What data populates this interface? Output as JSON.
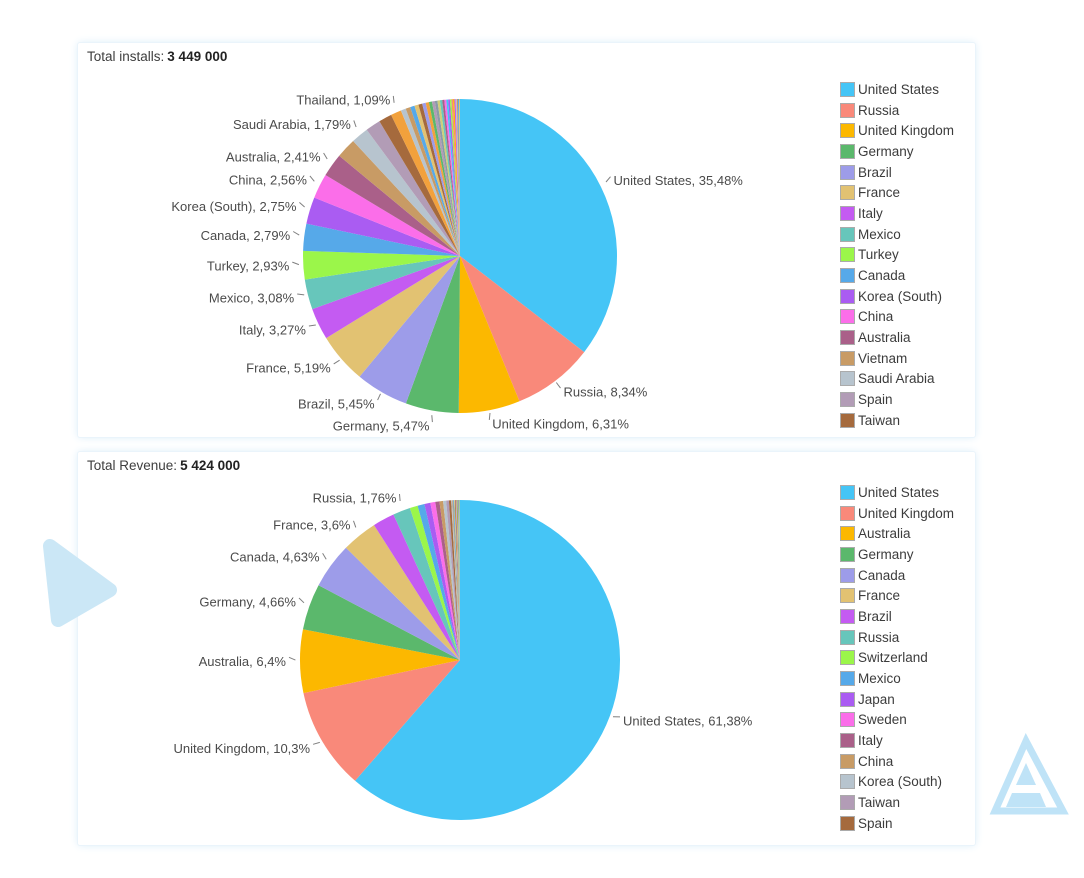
{
  "page": {
    "background": "#ffffff",
    "panel_background": "#ffffff",
    "panel_glow": "#d7ebf8"
  },
  "charts": [
    {
      "title_label": "Total installs:",
      "title_value": "3 449 000"
    },
    {
      "title_label": "Total Revenue:",
      "title_value": "5 424 000"
    }
  ],
  "chart_data": [
    {
      "type": "pie",
      "title": "Total installs: 3 449 000",
      "total": 3449000,
      "start_angle": "12 o'clock",
      "direction": "clockwise",
      "legend_position": "right",
      "slices": [
        {
          "label": "United States",
          "percent": 35.48,
          "display": "United States, 35,48%",
          "color": "#45c5f6",
          "in_legend": true,
          "labeled": true
        },
        {
          "label": "Russia",
          "percent": 8.34,
          "display": "Russia, 8,34%",
          "color": "#f9897a",
          "in_legend": true,
          "labeled": true
        },
        {
          "label": "United Kingdom",
          "percent": 6.31,
          "display": "United Kingdom, 6,31%",
          "color": "#fcb800",
          "in_legend": true,
          "labeled": true
        },
        {
          "label": "Germany",
          "percent": 5.47,
          "display": "Germany, 5,47%",
          "color": "#5bb86c",
          "in_legend": true,
          "labeled": true
        },
        {
          "label": "Brazil",
          "percent": 5.45,
          "display": "Brazil, 5,45%",
          "color": "#9d9ce9",
          "in_legend": true,
          "labeled": true
        },
        {
          "label": "France",
          "percent": 5.19,
          "display": "France, 5,19%",
          "color": "#e2c272",
          "in_legend": true,
          "labeled": true
        },
        {
          "label": "Italy",
          "percent": 3.27,
          "display": "Italy, 3,27%",
          "color": "#c45bf2",
          "in_legend": true,
          "labeled": true
        },
        {
          "label": "Mexico",
          "percent": 3.08,
          "display": "Mexico, 3,08%",
          "color": "#67c6bb",
          "in_legend": true,
          "labeled": true
        },
        {
          "label": "Turkey",
          "percent": 2.93,
          "display": "Turkey, 2,93%",
          "color": "#9bf64a",
          "in_legend": true,
          "labeled": true
        },
        {
          "label": "Canada",
          "percent": 2.79,
          "display": "Canada, 2,79%",
          "color": "#56a9e9",
          "in_legend": true,
          "labeled": true
        },
        {
          "label": "Korea (South)",
          "percent": 2.75,
          "display": "Korea (South), 2,75%",
          "color": "#aa5cf2",
          "in_legend": true,
          "labeled": true
        },
        {
          "label": "China",
          "percent": 2.56,
          "display": "China, 2,56%",
          "color": "#fb6ee9",
          "in_legend": true,
          "labeled": true
        },
        {
          "label": "Australia",
          "percent": 2.41,
          "display": "Australia, 2,41%",
          "color": "#aa6089",
          "in_legend": true,
          "labeled": true
        },
        {
          "label": "Vietnam",
          "percent": 2.05,
          "color": "#c89b65",
          "in_legend": true,
          "labeled": false,
          "estimated": true
        },
        {
          "label": "Saudi Arabia",
          "percent": 1.79,
          "display": "Saudi Arabia, 1,79%",
          "color": "#b7c4ce",
          "in_legend": true,
          "labeled": true
        },
        {
          "label": "Spain",
          "percent": 1.55,
          "color": "#b29cb6",
          "in_legend": true,
          "labeled": false,
          "estimated": true
        },
        {
          "label": "Taiwan",
          "percent": 1.35,
          "color": "#a56a3d",
          "in_legend": true,
          "labeled": false,
          "estimated": true
        },
        {
          "label": "Thailand",
          "percent": 1.09,
          "display": "Thailand, 1,09%",
          "color": "#f2a13c",
          "in_legend": false,
          "labeled": true
        }
      ],
      "others": {
        "total_percent": 6.14,
        "slice_count": 24,
        "estimated": true
      }
    },
    {
      "type": "pie",
      "title": "Total Revenue: 5 424 000",
      "total": 5424000,
      "start_angle": "12 o'clock",
      "direction": "clockwise",
      "legend_position": "right",
      "slices": [
        {
          "label": "United States",
          "percent": 61.38,
          "display": "United States, 61,38%",
          "color": "#45c5f6",
          "in_legend": true,
          "labeled": true
        },
        {
          "label": "United Kingdom",
          "percent": 10.3,
          "display": "United Kingdom, 10,3%",
          "color": "#f9897a",
          "in_legend": true,
          "labeled": true
        },
        {
          "label": "Australia",
          "percent": 6.4,
          "display": "Australia, 6,4%",
          "color": "#fcb800",
          "in_legend": true,
          "labeled": true
        },
        {
          "label": "Germany",
          "percent": 4.66,
          "display": "Germany, 4,66%",
          "color": "#5bb86c",
          "in_legend": true,
          "labeled": true
        },
        {
          "label": "Canada",
          "percent": 4.63,
          "display": "Canada, 4,63%",
          "color": "#9d9ce9",
          "in_legend": true,
          "labeled": true
        },
        {
          "label": "France",
          "percent": 3.6,
          "display": "France, 3,6%",
          "color": "#e2c272",
          "in_legend": true,
          "labeled": true
        },
        {
          "label": "Brazil",
          "percent": 2.2,
          "color": "#c45bf2",
          "in_legend": true,
          "labeled": false,
          "estimated": true
        },
        {
          "label": "Russia",
          "percent": 1.76,
          "display": "Russia, 1,76%",
          "color": "#67c6bb",
          "in_legend": true,
          "labeled": true
        },
        {
          "label": "Switzerland",
          "percent": 0.8,
          "color": "#9bf64a",
          "in_legend": true,
          "labeled": false,
          "estimated": true
        },
        {
          "label": "Mexico",
          "percent": 0.7,
          "color": "#56a9e9",
          "in_legend": true,
          "labeled": false,
          "estimated": true
        },
        {
          "label": "Japan",
          "percent": 0.6,
          "color": "#aa5cf2",
          "in_legend": true,
          "labeled": false,
          "estimated": true
        },
        {
          "label": "Sweden",
          "percent": 0.5,
          "color": "#fb6ee9",
          "in_legend": true,
          "labeled": false,
          "estimated": true
        },
        {
          "label": "Italy",
          "percent": 0.42,
          "color": "#aa6089",
          "in_legend": true,
          "labeled": false,
          "estimated": true
        },
        {
          "label": "China",
          "percent": 0.36,
          "color": "#c89b65",
          "in_legend": true,
          "labeled": false,
          "estimated": true
        },
        {
          "label": "Korea (South)",
          "percent": 0.31,
          "color": "#b7c4ce",
          "in_legend": true,
          "labeled": false,
          "estimated": true
        },
        {
          "label": "Taiwan",
          "percent": 0.27,
          "color": "#b29cb6",
          "in_legend": true,
          "labeled": false,
          "estimated": true
        },
        {
          "label": "Spain",
          "percent": 0.23,
          "color": "#a56a3d",
          "in_legend": true,
          "labeled": false,
          "estimated": true
        }
      ],
      "others": {
        "total_percent": 0.88,
        "slice_count": 12,
        "estimated": true
      }
    }
  ],
  "others_palette": [
    "#b7c4ce",
    "#c89b65",
    "#56a9e9",
    "#e2c272",
    "#a56a3d",
    "#9d9ce9",
    "#f2a13c",
    "#5bb86c",
    "#b29cb6",
    "#8a9ba8",
    "#cfcf7a",
    "#67c6bb",
    "#aa6089",
    "#fb6ee9",
    "#45c5f6",
    "#aa5cf2",
    "#9bf64a",
    "#f9897a",
    "#fcb800",
    "#c45bf2"
  ],
  "decor": {
    "left_triangle_color": "#cbe7f6",
    "logo_color": "#bfe3f7"
  }
}
